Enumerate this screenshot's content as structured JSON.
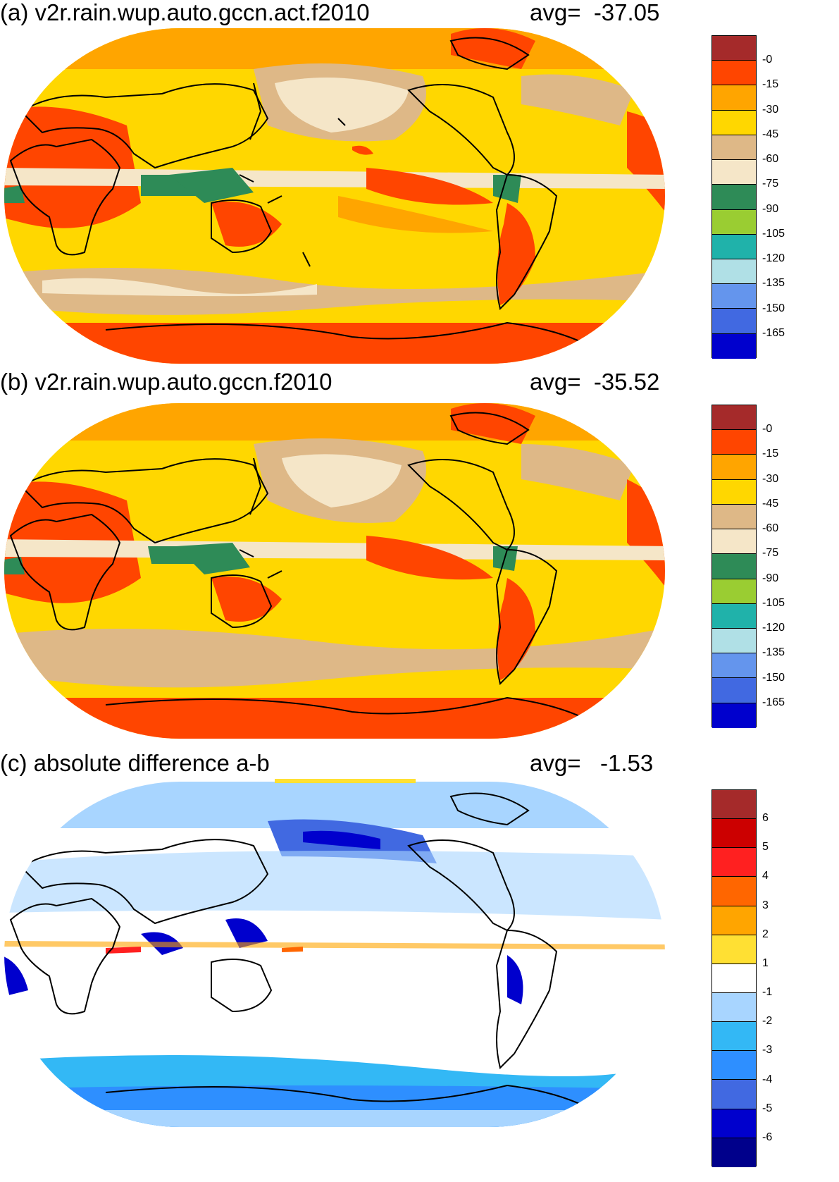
{
  "panels": [
    {
      "title": "(a) v2r.rain.wup.auto.gccn.act.f2010",
      "avg": "avg=  -37.05",
      "colorbar": {
        "colors": [
          "#a52a2a",
          "#ff4500",
          "#ffa500",
          "#ffd700",
          "#deb887",
          "#f5e6c8",
          "#2e8b57",
          "#9acd32",
          "#20b2aa",
          "#b0e0e6",
          "#6495ed",
          "#4169e1",
          "#0000cd"
        ],
        "labels": [
          "-0",
          "-15",
          "-30",
          "-45",
          "-60",
          "-75",
          "-90",
          "-105",
          "-120",
          "-135",
          "-150",
          "-165"
        ]
      }
    },
    {
      "title": "(b) v2r.rain.wup.auto.gccn.f2010",
      "avg": "avg=  -35.52",
      "colorbar": {
        "colors": [
          "#a52a2a",
          "#ff4500",
          "#ffa500",
          "#ffd700",
          "#deb887",
          "#f5e6c8",
          "#2e8b57",
          "#9acd32",
          "#20b2aa",
          "#b0e0e6",
          "#6495ed",
          "#4169e1",
          "#0000cd"
        ],
        "labels": [
          "-0",
          "-15",
          "-30",
          "-45",
          "-60",
          "-75",
          "-90",
          "-105",
          "-120",
          "-135",
          "-150",
          "-165"
        ]
      }
    },
    {
      "title": "(c) absolute difference a-b",
      "avg": "avg=   -1.53",
      "colorbar": {
        "colors": [
          "#a52a2a",
          "#cc0000",
          "#ff2020",
          "#ff6600",
          "#ffa500",
          "#ffe033",
          "#ffffff",
          "#a8d5ff",
          "#33b8f5",
          "#2e8fff",
          "#4169e1",
          "#0000cd",
          "#00008b"
        ],
        "labels": [
          "6",
          "5",
          "4",
          "3",
          "2",
          "1",
          "-1",
          "-2",
          "-3",
          "-4",
          "-5",
          "-6"
        ]
      }
    }
  ]
}
